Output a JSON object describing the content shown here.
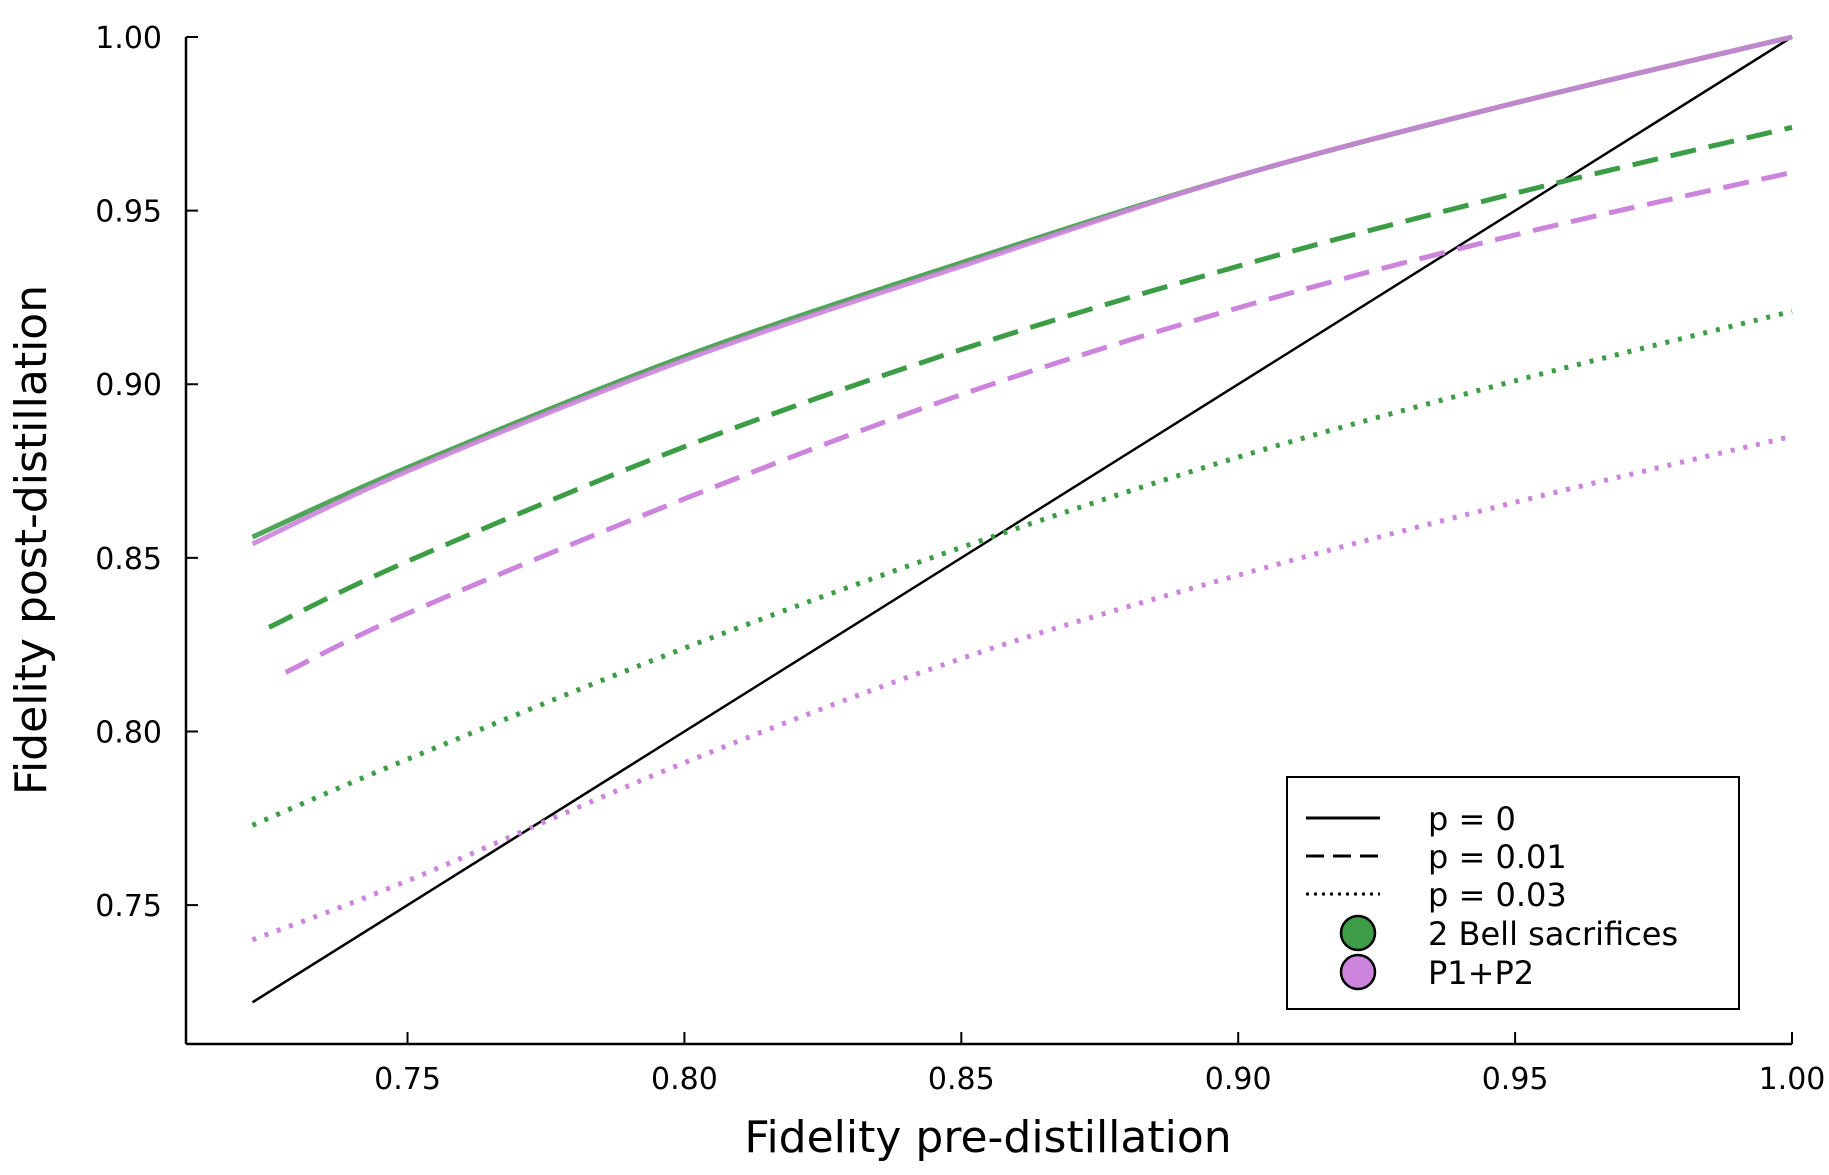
{
  "chart_data": {
    "type": "line",
    "xlabel": "Fidelity pre-distillation",
    "ylabel": "Fidelity post-distillation",
    "xlim": [
      0.71,
      1.0
    ],
    "ylim": [
      0.71,
      1.0
    ],
    "xticks": [
      0.75,
      0.8,
      0.85,
      0.9,
      0.95,
      1.0
    ],
    "yticks": [
      0.75,
      0.8,
      0.85,
      0.9,
      0.95,
      1.0
    ],
    "xtick_labels": [
      "0.75",
      "0.80",
      "0.85",
      "0.90",
      "0.95",
      "1.00"
    ],
    "ytick_labels": [
      "0.75",
      "0.80",
      "0.85",
      "0.90",
      "0.95",
      "1.00"
    ],
    "grid": false,
    "legend_position": "bottom-right",
    "x": [
      0.722,
      0.75,
      0.8,
      0.85,
      0.9,
      0.95,
      1.0
    ],
    "series": [
      {
        "name": "p = 0 reference (y = x)",
        "method": "reference",
        "p": "0",
        "color": "#000000",
        "style": "solid",
        "x": [
          0.722,
          1.0
        ],
        "values": [
          0.722,
          1.0
        ]
      },
      {
        "name": "2 Bell sacrifices, p = 0",
        "method": "2 Bell sacrifices",
        "p": "0",
        "color": "#3d9c46",
        "style": "solid",
        "values": [
          0.856,
          0.876,
          0.908,
          0.935,
          0.96,
          0.981,
          1.0
        ]
      },
      {
        "name": "P1+P2, p = 0",
        "method": "P1+P2",
        "p": "0",
        "color": "#cc84dc",
        "style": "solid",
        "values": [
          0.854,
          0.875,
          0.907,
          0.934,
          0.96,
          0.981,
          1.0
        ]
      },
      {
        "name": "2 Bell sacrifices, p = 0.01",
        "method": "2 Bell sacrifices",
        "p": "0.01",
        "color": "#3d9c46",
        "style": "dashed",
        "x": [
          0.725,
          0.75,
          0.8,
          0.85,
          0.9,
          0.95,
          1.0
        ],
        "values": [
          0.83,
          0.849,
          0.882,
          0.91,
          0.934,
          0.955,
          0.974
        ]
      },
      {
        "name": "P1+P2, p = 0.01",
        "method": "P1+P2",
        "p": "0.01",
        "color": "#cc84dc",
        "style": "dashed",
        "x": [
          0.728,
          0.75,
          0.8,
          0.85,
          0.9,
          0.95,
          1.0
        ],
        "values": [
          0.817,
          0.834,
          0.867,
          0.897,
          0.922,
          0.943,
          0.961
        ]
      },
      {
        "name": "2 Bell sacrifices, p = 0.03",
        "method": "2 Bell sacrifices",
        "p": "0.03",
        "color": "#3d9c46",
        "style": "dotted",
        "values": [
          0.773,
          0.792,
          0.824,
          0.853,
          0.879,
          0.901,
          0.921
        ]
      },
      {
        "name": "P1+P2, p = 0.03",
        "method": "P1+P2",
        "p": "0.03",
        "color": "#cc84dc",
        "style": "dotted",
        "values": [
          0.74,
          0.757,
          0.791,
          0.821,
          0.845,
          0.866,
          0.885
        ]
      }
    ],
    "legend": {
      "linestyles": [
        {
          "label": "p = 0",
          "style": "solid"
        },
        {
          "label": "p = 0.01",
          "style": "dashed"
        },
        {
          "label": "p = 0.03",
          "style": "dotted"
        }
      ],
      "methods": [
        {
          "label": "2 Bell sacrifices",
          "color": "#3d9c46"
        },
        {
          "label": "P1+P2",
          "color": "#cc84dc"
        }
      ]
    }
  }
}
